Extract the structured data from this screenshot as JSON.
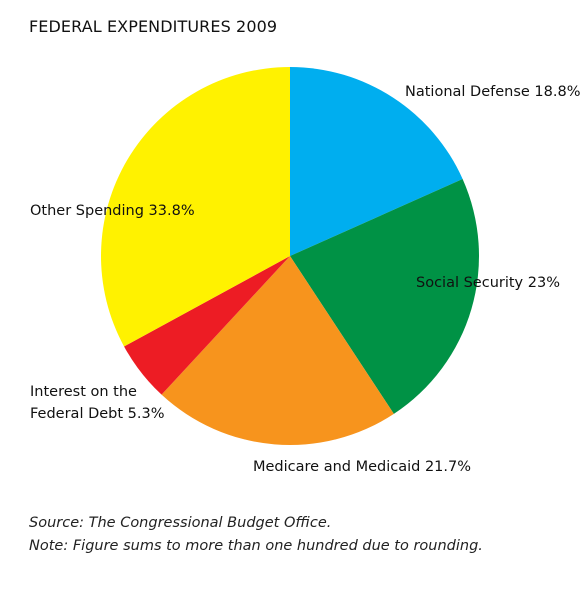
{
  "chart_data": {
    "type": "pie",
    "title": "FEDERAL EXPENDITURES 2009",
    "slices": [
      {
        "label": "National Defense 18.8%",
        "name": "National Defense",
        "value": 18.8,
        "color": "#00AEEF"
      },
      {
        "label": "Social Security 23%",
        "name": "Social Security",
        "value": 23,
        "color": "#009245"
      },
      {
        "label": "Medicare and Medicaid 21.7%",
        "name": "Medicare and Medicaid",
        "value": 21.7,
        "color": "#F7941D"
      },
      {
        "label": "Interest on the Federal Debt 5.3%",
        "name": "Interest on the Federal Debt",
        "value": 5.3,
        "color": "#ED1C24"
      },
      {
        "label": "Other Spending 33.8%",
        "name": "Other Spending",
        "value": 33.8,
        "color": "#FFF200"
      }
    ]
  },
  "footnotes": {
    "source": "Source: The Congressional Budget Office.",
    "note": "Note: Figure sums to more than one hundred due to rounding."
  }
}
